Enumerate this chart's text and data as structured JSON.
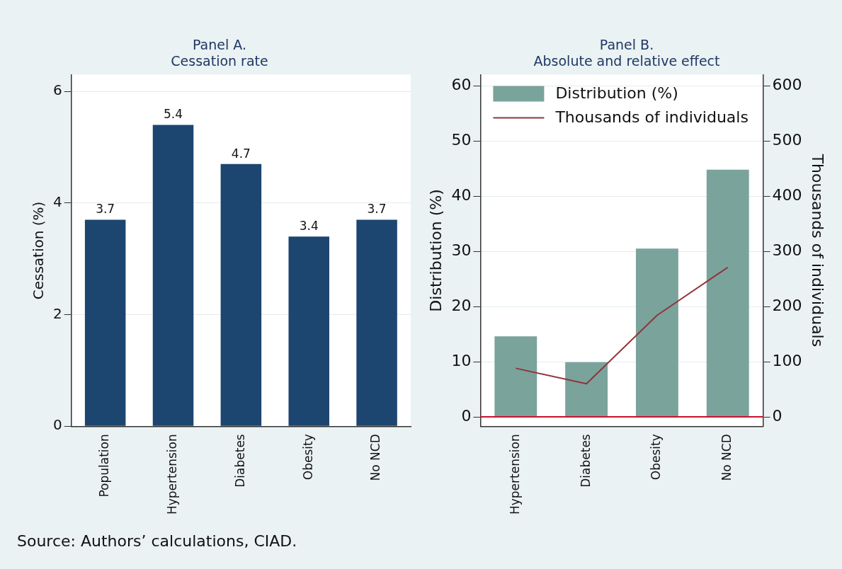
{
  "chart_data": [
    {
      "type": "bar",
      "title": "Panel A.",
      "subtitle": "Cessation rate",
      "ylabel": "Cessation (%)",
      "categories": [
        "Population",
        "Hypertension",
        "Diabetes",
        "Obesity",
        "No NCD"
      ],
      "values": [
        3.7,
        5.4,
        4.7,
        3.4,
        3.7
      ],
      "color": "#1c4670",
      "data_labels": true,
      "ylim": [
        0,
        6.3
      ],
      "yticks": [
        0,
        2,
        4,
        6
      ],
      "grid": "y",
      "annotations": [
        "Source: Authors’ calculations, CIAD."
      ]
    },
    {
      "type": "bar",
      "title": "Panel B.",
      "subtitle": "Absolute and relative effect",
      "ylabel": "Distribution (%)",
      "y2label": "Thousands of individuals",
      "categories": [
        "Hypertension",
        "Diabetes",
        "Obesity",
        "No NCD"
      ],
      "series": [
        {
          "name": "Distribution (%)",
          "color": "#7aa39c",
          "values": [
            14.6,
            9.9,
            30.5,
            44.8
          ]
        },
        {
          "name": "Thousands of individuals",
          "type": "line",
          "axis": "y2",
          "color": "#90353b",
          "values": [
            88,
            60,
            184,
            271
          ]
        }
      ],
      "ylim": [
        -1.7,
        62
      ],
      "yticks": [
        0,
        10,
        20,
        30,
        40,
        50,
        60
      ],
      "y2lim": [
        -17,
        620
      ],
      "y2ticks": [
        0,
        100,
        200,
        300,
        400,
        500,
        600
      ],
      "ref_lines": [
        {
          "axis": "y",
          "value": 0,
          "color": "#c8102e"
        }
      ],
      "grid": "y",
      "legend": "top left"
    }
  ]
}
